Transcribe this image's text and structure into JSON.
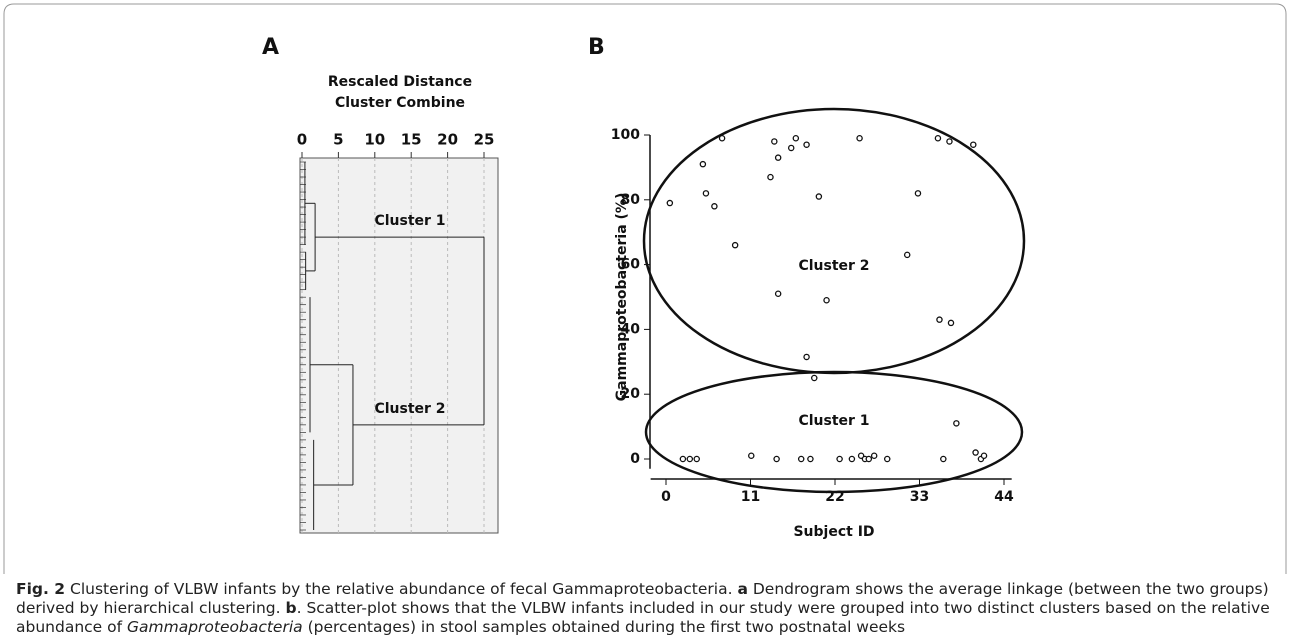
{
  "chart_data": [
    {
      "type": "dendrogram",
      "label": "A",
      "title": "Rescaled Distance",
      "subtitle": "Cluster Combine",
      "xlim": [
        0,
        27
      ],
      "xticks": [
        0,
        5,
        10,
        15,
        20,
        25
      ],
      "grid": true,
      "nodes": [
        {
          "height": 0.4
        },
        {
          "height": 0.5
        },
        {
          "label": "Cluster 1",
          "height": 1.8
        },
        {
          "height": 1.1
        },
        {
          "height": 1.6
        },
        {
          "label": "Cluster 2",
          "height": 7
        },
        {
          "height": 25
        }
      ]
    },
    {
      "type": "scatter",
      "label": "B",
      "xlabel": "Subject ID",
      "ylabel": "Gammaproteobacteria (%)",
      "xlim": [
        -2,
        45
      ],
      "ylim": [
        -3,
        100
      ],
      "xticks": [
        0,
        11,
        22,
        33,
        44
      ],
      "yticks": [
        0,
        20,
        40,
        60,
        80,
        100
      ],
      "annotations": [
        "Cluster 2",
        "Cluster 1"
      ],
      "x": [
        0.5,
        4.8,
        5.2,
        6.3,
        7.3,
        9.0,
        13.6,
        14.1,
        14.6,
        14.6,
        16.3,
        16.9,
        18.3,
        18.3,
        19.3,
        19.9,
        20.9,
        25.2,
        31.4,
        32.8,
        35.4,
        36.9,
        40.0,
        35.6,
        37.1,
        37.8,
        2.2,
        3.1,
        4.0,
        11.1,
        14.4,
        17.6,
        18.8,
        22.6,
        24.2,
        25.4,
        25.9,
        26.4,
        27.1,
        28.8,
        36.1,
        40.3,
        41.0,
        41.4
      ],
      "values": [
        79,
        91,
        82,
        78,
        99,
        66,
        87,
        98,
        93,
        51,
        96,
        99,
        97,
        31.5,
        25,
        81,
        49,
        99,
        63,
        82,
        99,
        98,
        97,
        43,
        42,
        11,
        0,
        0,
        0,
        1,
        0,
        0,
        0,
        0,
        0,
        1,
        0,
        0,
        1,
        0,
        0,
        2,
        0,
        1
      ]
    }
  ],
  "caption": [
    "Fig. 2",
    " Clustering of VLBW infants by the relative abundance of fecal Gammaproteobacteria. ",
    "a",
    " Dendrogram shows the average linkage (between the two groups) derived by hierarchical clustering. ",
    "b",
    ". Scatter-plot shows that the VLBW infants included in our study were grouped into two distinct clusters based on the relative abundance of ",
    "Gammaproteobacteria",
    " (percentages) in stool samples obtained during the first two postnatal weeks"
  ]
}
